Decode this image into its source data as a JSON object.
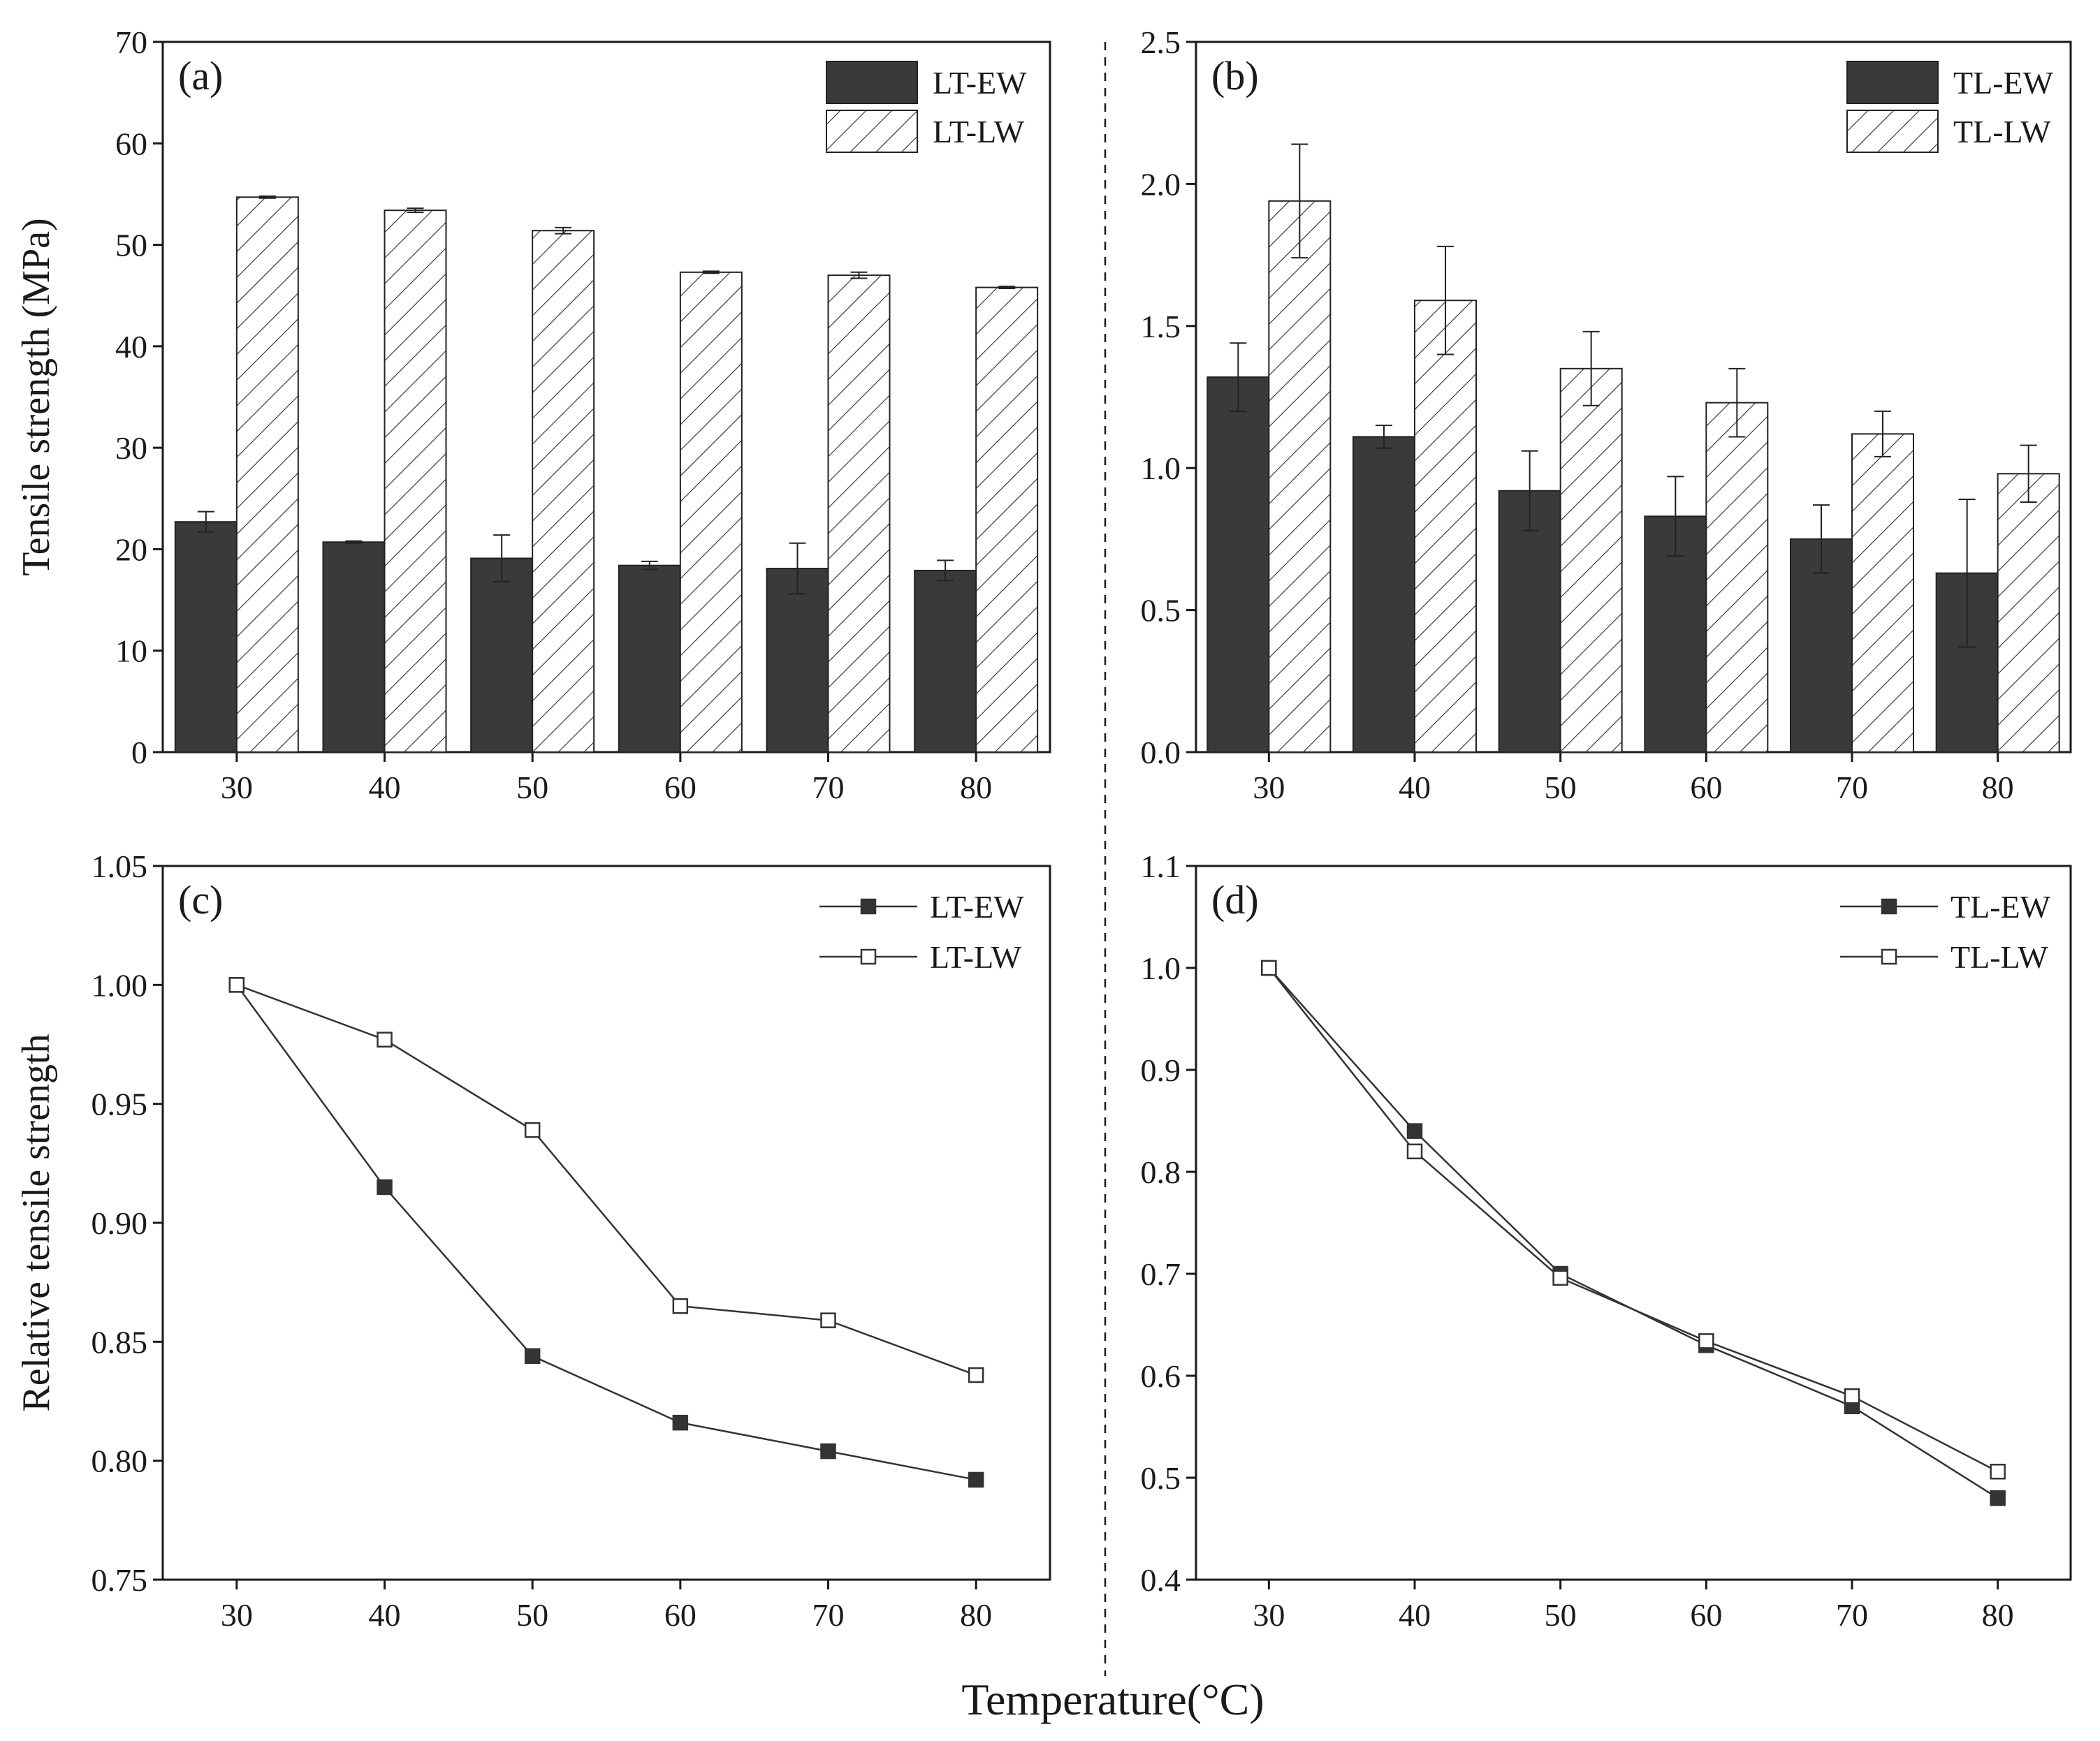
{
  "figure": {
    "common_xlabel": "Temperature(°C)"
  },
  "colors": {
    "dark_bar": "#3a3a3a",
    "axis": "#1a1a1a",
    "hatch": "#3a3a3a",
    "marker_fill": "#333333",
    "marker_open": "#ffffff"
  },
  "chart_data": [
    {
      "panel": "a",
      "label": "(a)",
      "type": "bar",
      "categories": [
        "30",
        "40",
        "50",
        "60",
        "70",
        "80"
      ],
      "series": [
        {
          "name": "LT-EW",
          "style": "solid",
          "values": [
            22.7,
            20.7,
            19.1,
            18.4,
            18.1,
            17.9
          ],
          "errors": [
            1.0,
            0.1,
            2.3,
            0.4,
            2.5,
            1.0
          ]
        },
        {
          "name": "LT-LW",
          "style": "hatched",
          "values": [
            54.7,
            53.4,
            51.4,
            47.3,
            47.0,
            45.8
          ],
          "errors": [
            0.1,
            0.2,
            0.3,
            0.1,
            0.3,
            0.1
          ]
        }
      ],
      "ylabel": "Tensile strength (MPa)",
      "ylim": [
        0,
        70
      ],
      "yticks": [
        0,
        10,
        20,
        30,
        40,
        50,
        60,
        70
      ],
      "ytick_labels": [
        "0",
        "10",
        "20",
        "30",
        "40",
        "50",
        "60",
        "70"
      ],
      "legend": "top-right",
      "grid": false
    },
    {
      "panel": "b",
      "label": "(b)",
      "type": "bar",
      "categories": [
        "30",
        "40",
        "50",
        "60",
        "70",
        "80"
      ],
      "series": [
        {
          "name": "TL-EW",
          "style": "solid",
          "values": [
            1.32,
            1.11,
            0.92,
            0.83,
            0.75,
            0.63
          ],
          "errors": [
            0.12,
            0.04,
            0.14,
            0.14,
            0.12,
            0.26
          ]
        },
        {
          "name": "TL-LW",
          "style": "hatched",
          "values": [
            1.94,
            1.59,
            1.35,
            1.23,
            1.12,
            0.98
          ],
          "errors": [
            0.2,
            0.19,
            0.13,
            0.12,
            0.08,
            0.1
          ]
        }
      ],
      "ylabel": "",
      "ylim": [
        0,
        2.5
      ],
      "yticks": [
        0,
        0.5,
        1.0,
        1.5,
        2.0,
        2.5
      ],
      "ytick_labels": [
        "0.0",
        "0.5",
        "1.0",
        "1.5",
        "2.0",
        "2.5"
      ],
      "legend": "top-right",
      "grid": false
    },
    {
      "panel": "c",
      "label": "(c)",
      "type": "line",
      "x": [
        30,
        40,
        50,
        60,
        70,
        80
      ],
      "xticks": [
        30,
        40,
        50,
        60,
        70,
        80
      ],
      "xtick_labels": [
        "30",
        "40",
        "50",
        "60",
        "70",
        "80"
      ],
      "xlim": [
        25,
        85
      ],
      "series": [
        {
          "name": "LT-EW",
          "marker": "filled-square",
          "values": [
            1.0,
            0.915,
            0.844,
            0.816,
            0.804,
            0.792
          ]
        },
        {
          "name": "LT-LW",
          "marker": "open-square",
          "values": [
            1.0,
            0.977,
            0.939,
            0.865,
            0.859,
            0.836
          ]
        }
      ],
      "ylabel": "Relative tensile strength",
      "ylim": [
        0.75,
        1.05
      ],
      "yticks": [
        0.75,
        0.8,
        0.85,
        0.9,
        0.95,
        1.0,
        1.05
      ],
      "ytick_labels": [
        "0.75",
        "0.80",
        "0.85",
        "0.90",
        "0.95",
        "1.00",
        "1.05"
      ],
      "legend": "top-right",
      "grid": false
    },
    {
      "panel": "d",
      "label": "(d)",
      "type": "line",
      "x": [
        30,
        40,
        50,
        60,
        70,
        80
      ],
      "xticks": [
        30,
        40,
        50,
        60,
        70,
        80
      ],
      "xtick_labels": [
        "30",
        "40",
        "50",
        "60",
        "70",
        "80"
      ],
      "xlim": [
        25,
        85
      ],
      "series": [
        {
          "name": "TL-EW",
          "marker": "filled-square",
          "values": [
            1.0,
            0.84,
            0.7,
            0.63,
            0.57,
            0.48
          ]
        },
        {
          "name": "TL-LW",
          "marker": "open-square",
          "values": [
            1.0,
            0.82,
            0.696,
            0.634,
            0.58,
            0.506
          ]
        }
      ],
      "ylabel": "",
      "ylim": [
        0.4,
        1.1
      ],
      "yticks": [
        0.4,
        0.5,
        0.6,
        0.7,
        0.8,
        0.9,
        1.0,
        1.1
      ],
      "ytick_labels": [
        "0.4",
        "0.5",
        "0.6",
        "0.7",
        "0.8",
        "0.9",
        "1.0",
        "1.1"
      ],
      "legend": "top-right",
      "grid": false
    }
  ]
}
